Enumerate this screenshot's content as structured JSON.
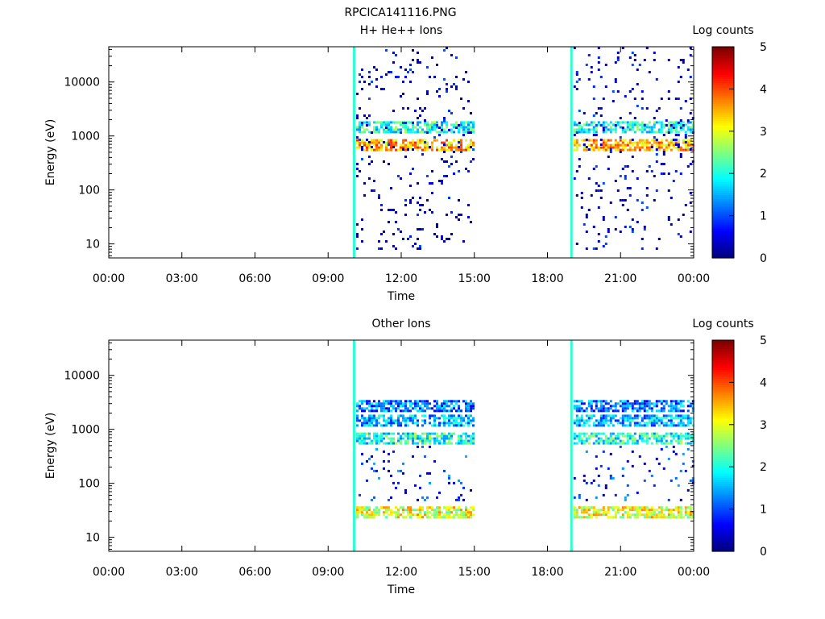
{
  "figure": {
    "title": "RPCICA141116.PNG"
  },
  "chart_data": [
    {
      "type": "heatmap",
      "title": "H+ He++ Ions",
      "xlabel": "Time",
      "ylabel": "Energy (eV)",
      "y_scale": "log",
      "ylim": [
        5.5,
        45000
      ],
      "xlim_hours": [
        0,
        24
      ],
      "x_tick_labels": [
        "00:00",
        "03:00",
        "06:00",
        "09:00",
        "12:00",
        "15:00",
        "18:00",
        "21:00",
        "00:00"
      ],
      "y_tick_values": [
        10,
        100,
        1000,
        10000
      ],
      "y_tick_labels": [
        "10",
        "100",
        "1000",
        "10000"
      ],
      "colorbar": {
        "label": "Log counts",
        "range": [
          0,
          5
        ],
        "tick_labels": [
          "0",
          "1",
          "2",
          "3",
          "4",
          "5"
        ],
        "colormap": "jet"
      },
      "data_intervals": [
        {
          "start": "10:05",
          "end": "15:00"
        },
        {
          "start": "19:00",
          "end": "24:00"
        }
      ],
      "observed_features": [
        {
          "energy_eV": 700,
          "log_counts": 3.5,
          "description": "dense band around 500-900 eV"
        },
        {
          "energy_eV": 1500,
          "log_counts": 2.0,
          "description": "band near 1400-1600 eV"
        },
        {
          "energy_eV": "8-45000",
          "log_counts": 0.3,
          "description": "sparse background counts"
        }
      ]
    },
    {
      "type": "heatmap",
      "title": "Other Ions",
      "xlabel": "Time",
      "ylabel": "Energy (eV)",
      "y_scale": "log",
      "ylim": [
        5.5,
        45000
      ],
      "xlim_hours": [
        0,
        24
      ],
      "x_tick_labels": [
        "00:00",
        "03:00",
        "06:00",
        "09:00",
        "12:00",
        "15:00",
        "18:00",
        "21:00",
        "00:00"
      ],
      "y_tick_values": [
        10,
        100,
        1000,
        10000
      ],
      "y_tick_labels": [
        "10",
        "100",
        "1000",
        "10000"
      ],
      "colorbar": {
        "label": "Log counts",
        "range": [
          0,
          5
        ],
        "tick_labels": [
          "0",
          "1",
          "2",
          "3",
          "4",
          "5"
        ],
        "colormap": "jet"
      },
      "data_intervals": [
        {
          "start": "10:05",
          "end": "15:00"
        },
        {
          "start": "19:00",
          "end": "24:00"
        }
      ],
      "observed_features": [
        {
          "energy_eV": 30,
          "log_counts": 3.0,
          "description": "strong band around 20-40 eV"
        },
        {
          "energy_eV": 700,
          "log_counts": 2.0,
          "description": "band near 700 eV"
        },
        {
          "energy_eV": 1500,
          "log_counts": 1.5,
          "description": "band near 1500 eV"
        },
        {
          "energy_eV": 2800,
          "log_counts": 1.2,
          "description": "band near 2800 eV"
        },
        {
          "energy_eV": "50-500",
          "log_counts": 0.8,
          "description": "patchy counts"
        }
      ]
    }
  ]
}
